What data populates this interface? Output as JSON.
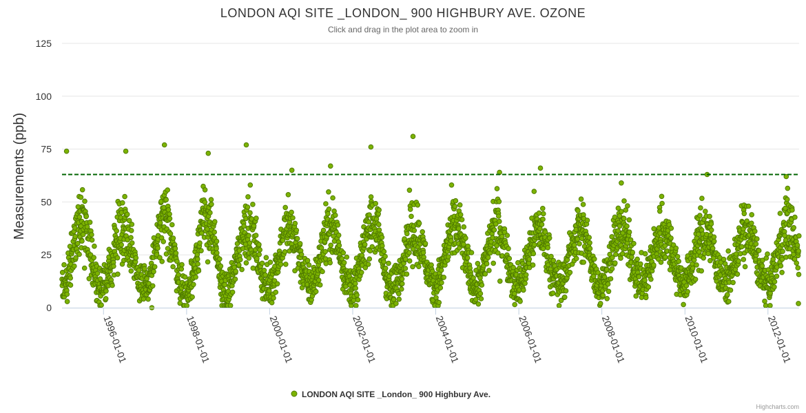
{
  "chart_data": {
    "type": "scatter",
    "title": "LONDON AQI SITE _LONDON_ 900 HIGHBURY AVE. OZONE",
    "subtitle": "Click and drag in the plot area to zoom in",
    "ylabel": "Measurements (ppb)",
    "xlabel": "",
    "ylim": [
      0,
      125
    ],
    "yticks": [
      0,
      25,
      50,
      75,
      100,
      125
    ],
    "xrange": [
      "1995-01-01",
      "2012-10-01"
    ],
    "xticks": [
      "1996-01-01",
      "1998-01-01",
      "2000-01-01",
      "2002-01-01",
      "2004-01-01",
      "2006-01-01",
      "2008-01-01",
      "2010-01-01",
      "2012-01-01"
    ],
    "reference_line": {
      "value": 63,
      "style": "dashed",
      "color": "#006400"
    },
    "series": [
      {
        "name": "LONDON AQI SITE _London_ 900 Highbury Ave.",
        "color": "#7cb300",
        "edge_color": "#4f7a00",
        "description": "Daily ozone measurements with seasonal cycle roughly between 2 and 60 ppb; notable peaks",
        "notable_points": [
          {
            "x": "1995-02-10",
            "y": 74
          },
          {
            "x": "1996-07-15",
            "y": 74
          },
          {
            "x": "1997-06-20",
            "y": 77
          },
          {
            "x": "1998-07-10",
            "y": 73
          },
          {
            "x": "1999-06-10",
            "y": 77
          },
          {
            "x": "2000-07-15",
            "y": 65
          },
          {
            "x": "2001-06-20",
            "y": 67
          },
          {
            "x": "2002-06-10",
            "y": 76
          },
          {
            "x": "2003-06-15",
            "y": 81
          },
          {
            "x": "2005-07-15",
            "y": 64
          },
          {
            "x": "2006-07-10",
            "y": 66
          },
          {
            "x": "2008-06-20",
            "y": 59
          },
          {
            "x": "2010-07-15",
            "y": 63
          },
          {
            "x": "2012-06-10",
            "y": 62
          },
          {
            "x": "1997-03-01",
            "y": 0
          },
          {
            "x": "2007-12-20",
            "y": 2
          },
          {
            "x": "2012-09-25",
            "y": 2
          }
        ]
      }
    ]
  },
  "credits": "Highcharts.com"
}
